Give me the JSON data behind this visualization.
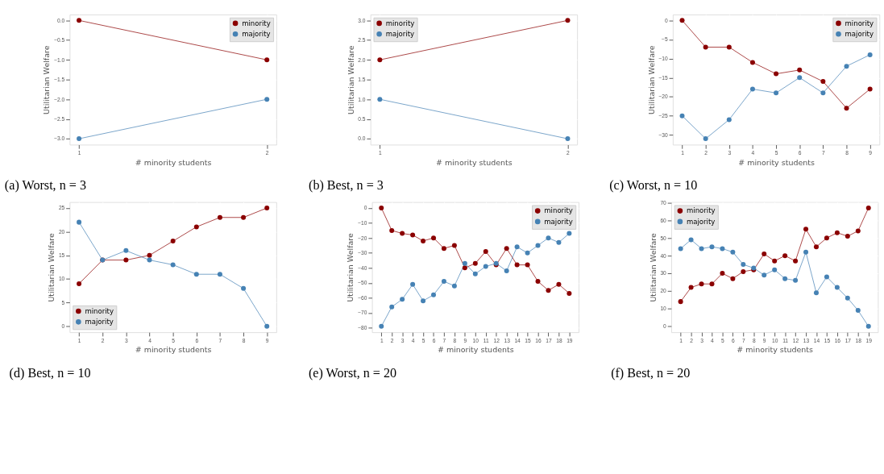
{
  "chart_data": [
    {
      "type": "line",
      "title": "(a) Worst, n = 3",
      "xlabel": "# minority students",
      "ylabel": "Utilitarian Welfare",
      "x": [
        1,
        2
      ],
      "xlim": [
        0.95,
        2.05
      ],
      "xticks": [
        1,
        2
      ],
      "ylim": [
        -3.15,
        0.15
      ],
      "yticks": [
        {
          "value": -3,
          "label": "−3.0"
        },
        {
          "value": -2.5,
          "label": "−2.5"
        },
        {
          "value": -2,
          "label": "−2.0"
        },
        {
          "value": -1.5,
          "label": "−1.5"
        },
        {
          "value": -1,
          "label": "−1.0"
        },
        {
          "value": -0.5,
          "label": "−0.5"
        },
        {
          "value": 0,
          "label": "0.0"
        }
      ],
      "grid": true,
      "legend": "top right",
      "marker": "circle",
      "series": [
        {
          "name": "minority",
          "color": "#8b0000",
          "values": [
            0,
            -1
          ]
        },
        {
          "name": "majority",
          "color": "#4682b4",
          "values": [
            -3,
            -2
          ]
        }
      ]
    },
    {
      "type": "line",
      "title": "(b) Best, n = 3",
      "xlabel": "# minority students",
      "ylabel": "Utilitarian Welfare",
      "x": [
        1,
        2
      ],
      "xlim": [
        0.95,
        2.05
      ],
      "xticks": [
        1,
        2
      ],
      "ylim": [
        -0.15,
        3.15
      ],
      "yticks": [
        {
          "value": 0,
          "label": "0.0"
        },
        {
          "value": 0.5,
          "label": "0.5"
        },
        {
          "value": 1,
          "label": "1.0"
        },
        {
          "value": 1.5,
          "label": "1.5"
        },
        {
          "value": 2,
          "label": "2.0"
        },
        {
          "value": 2.5,
          "label": "2.5"
        },
        {
          "value": 3,
          "label": "3.0"
        }
      ],
      "grid": true,
      "legend": "top left",
      "marker": "circle",
      "series": [
        {
          "name": "minority",
          "color": "#8b0000",
          "values": [
            2,
            3
          ]
        },
        {
          "name": "majority",
          "color": "#4682b4",
          "values": [
            1,
            0
          ]
        }
      ]
    },
    {
      "type": "line",
      "title": "(c) Worst, n = 10",
      "xlabel": "# minority students",
      "ylabel": "Utilitarian Welfare",
      "x": [
        1,
        2,
        3,
        4,
        5,
        6,
        7,
        8,
        9
      ],
      "xlim": [
        0.6,
        9.4
      ],
      "xticks": [
        1,
        2,
        3,
        4,
        5,
        6,
        7,
        8,
        9
      ],
      "ylim": [
        -32.55,
        1.55
      ],
      "yticks": [
        {
          "value": -30,
          "label": "−30"
        },
        {
          "value": -25,
          "label": "−25"
        },
        {
          "value": -20,
          "label": "−20"
        },
        {
          "value": -15,
          "label": "−15"
        },
        {
          "value": -10,
          "label": "−10"
        },
        {
          "value": -5,
          "label": "−5"
        },
        0
      ],
      "grid": true,
      "legend": "top right",
      "marker": "circle",
      "series": [
        {
          "name": "minority",
          "color": "#8b0000",
          "values": [
            0,
            -7,
            -7,
            -11,
            -14,
            -13,
            -16,
            -23,
            -18
          ]
        },
        {
          "name": "majority",
          "color": "#4682b4",
          "values": [
            -25,
            -31,
            -26,
            -18,
            -19,
            -15,
            -19,
            -12,
            -9
          ]
        }
      ]
    },
    {
      "type": "line",
      "title": "(d) Best, n = 10",
      "xlabel": "# minority students",
      "ylabel": "Utilitarian Welfare",
      "x": [
        1,
        2,
        3,
        4,
        5,
        6,
        7,
        8,
        9
      ],
      "xlim": [
        0.6,
        9.4
      ],
      "xticks": [
        1,
        2,
        3,
        4,
        5,
        6,
        7,
        8,
        9
      ],
      "ylim": [
        -1.25,
        26.25
      ],
      "yticks": [
        0,
        5,
        10,
        15,
        20,
        25
      ],
      "grid": true,
      "legend": "bottom left",
      "marker": "circle",
      "series": [
        {
          "name": "minority",
          "color": "#8b0000",
          "values": [
            9,
            14,
            14,
            15,
            18,
            21,
            23,
            23,
            25
          ]
        },
        {
          "name": "majority",
          "color": "#4682b4",
          "values": [
            22,
            14,
            16,
            14,
            13,
            11,
            11,
            8,
            0
          ]
        }
      ]
    },
    {
      "type": "line",
      "title": "(e) Worst, n = 20",
      "xlabel": "# minority students",
      "ylabel": "Utilitarian Welfare",
      "x": [
        1,
        2,
        3,
        4,
        5,
        6,
        7,
        8,
        9,
        10,
        11,
        12,
        13,
        14,
        15,
        16,
        17,
        18,
        19
      ],
      "xlim": [
        0.1,
        19.9
      ],
      "xticks": [
        1,
        2,
        3,
        4,
        5,
        6,
        7,
        8,
        9,
        10,
        11,
        12,
        13,
        14,
        15,
        16,
        17,
        18,
        19
      ],
      "ylim": [
        -82.95,
        3.95
      ],
      "yticks": [
        {
          "value": -80,
          "label": "−80"
        },
        {
          "value": -70,
          "label": "−70"
        },
        {
          "value": -60,
          "label": "−60"
        },
        {
          "value": -50,
          "label": "−50"
        },
        {
          "value": -40,
          "label": "−40"
        },
        {
          "value": -30,
          "label": "−30"
        },
        {
          "value": -20,
          "label": "−20"
        },
        {
          "value": -10,
          "label": "−10"
        },
        0
      ],
      "grid": true,
      "legend": "top right",
      "marker": "circle",
      "series": [
        {
          "name": "minority",
          "color": "#8b0000",
          "values": [
            0,
            -15,
            -17,
            -18,
            -22,
            -20,
            -27,
            -25,
            -40,
            -37,
            -29,
            -38,
            -27,
            -38,
            -38,
            -49,
            -55,
            -51,
            -57
          ]
        },
        {
          "name": "majority",
          "color": "#4682b4",
          "values": [
            -79,
            -66,
            -61,
            -51,
            -62,
            -58,
            -49,
            -52,
            -37,
            -44,
            -39,
            -37,
            -42,
            -26,
            -30,
            -25,
            -20,
            -23,
            -17
          ]
        }
      ]
    },
    {
      "type": "line",
      "title": "(f) Best, n = 20",
      "xlabel": "# minority students",
      "ylabel": "Utilitarian Welfare",
      "x": [
        1,
        2,
        3,
        4,
        5,
        6,
        7,
        8,
        9,
        10,
        11,
        12,
        13,
        14,
        15,
        16,
        17,
        18,
        19
      ],
      "xlim": [
        0.1,
        19.9
      ],
      "xticks": [
        1,
        2,
        3,
        4,
        5,
        6,
        7,
        8,
        9,
        10,
        11,
        12,
        13,
        14,
        15,
        16,
        17,
        18,
        19
      ],
      "ylim": [
        -3.35,
        70.35
      ],
      "yticks": [
        0,
        10,
        20,
        30,
        40,
        50,
        60,
        70
      ],
      "grid": true,
      "legend": "top left",
      "marker": "circle",
      "series": [
        {
          "name": "minority",
          "color": "#8b0000",
          "values": [
            14,
            22,
            24,
            24,
            30,
            27,
            31,
            32,
            41,
            37,
            40,
            37,
            55,
            45,
            50,
            53,
            51,
            54,
            67
          ]
        },
        {
          "name": "majority",
          "color": "#4682b4",
          "values": [
            44,
            49,
            44,
            45,
            44,
            42,
            35,
            33,
            29,
            32,
            27,
            26,
            42,
            19,
            28,
            22,
            16,
            9,
            0
          ]
        }
      ]
    }
  ]
}
